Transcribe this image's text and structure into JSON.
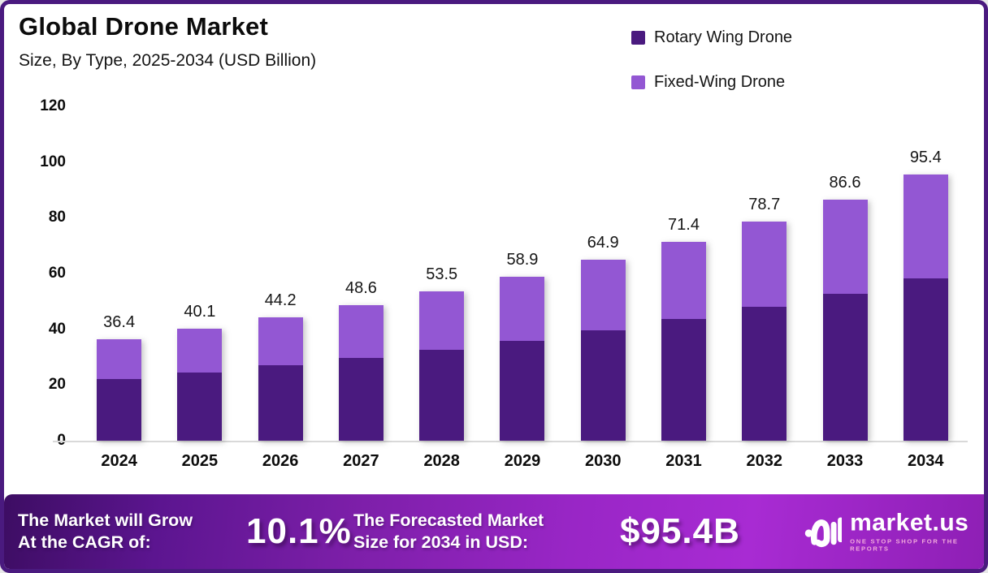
{
  "page": {
    "title": "Global Drone Market",
    "subtitle": "Size, By Type, 2025-2034 (USD Billion)",
    "border_color": "#4A1A7F"
  },
  "legend": [
    {
      "label": "Rotary Wing Drone",
      "color": "#4A1A7F"
    },
    {
      "label": "Fixed-Wing Drone",
      "color": "#9357D3"
    }
  ],
  "chart_data": {
    "type": "bar",
    "stacked": true,
    "title": "Global Drone Market",
    "subtitle": "Size, By Type, 2025-2034 (USD Billion)",
    "xlabel": "",
    "ylabel": "USD Billion",
    "categories": [
      "2024",
      "2025",
      "2026",
      "2027",
      "2028",
      "2029",
      "2030",
      "2031",
      "2032",
      "2033",
      "2034"
    ],
    "series": [
      {
        "name": "Rotary Wing Drone",
        "color": "#4A1A7F",
        "values": [
          22.2,
          24.5,
          27.0,
          29.6,
          32.6,
          35.9,
          39.6,
          43.6,
          48.0,
          52.8,
          58.2
        ]
      },
      {
        "name": "Fixed-Wing Drone",
        "color": "#9357D3",
        "values": [
          14.2,
          15.6,
          17.2,
          19.0,
          20.9,
          23.0,
          25.3,
          27.8,
          30.7,
          33.8,
          37.2
        ]
      }
    ],
    "totals": [
      36.4,
      40.1,
      44.2,
      48.6,
      53.5,
      58.9,
      64.9,
      71.4,
      78.7,
      86.6,
      95.4
    ],
    "total_labels": [
      "36.4",
      "40.1",
      "44.2",
      "48.6",
      "53.5",
      "58.9",
      "64.9",
      "71.4",
      "78.7",
      "86.6",
      "95.4"
    ],
    "ylim": [
      0,
      120
    ],
    "yticks": [
      0,
      20,
      40,
      60,
      80,
      100,
      120
    ],
    "grid": false,
    "legend_position": "top-right"
  },
  "banner": {
    "cagr_label_line1": "The Market will Grow",
    "cagr_label_line2": "At the CAGR of:",
    "cagr_value": "10.1%",
    "forecast_label_line1": "The Forecasted Market",
    "forecast_label_line2": "Size for 2034 in USD:",
    "forecast_value": "$95.4B",
    "logo_text": "market.us",
    "logo_tagline": "ONE STOP SHOP FOR THE REPORTS",
    "tagline_color": "#F2AADC"
  }
}
